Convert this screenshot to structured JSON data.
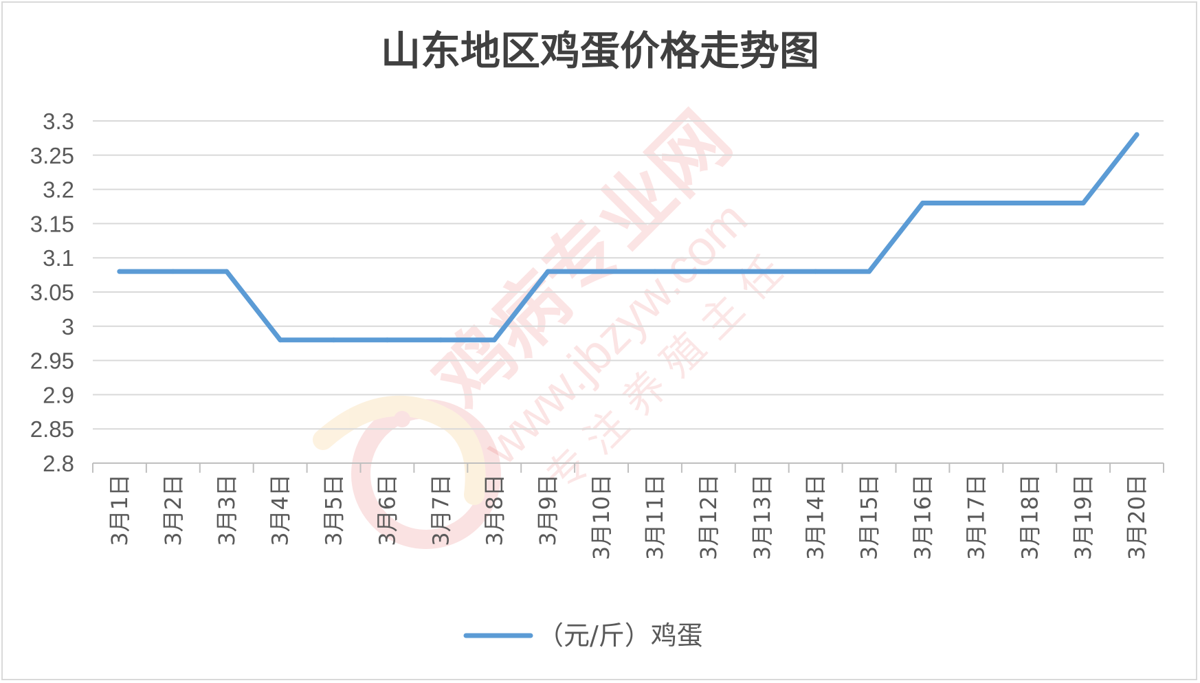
{
  "chart_data": {
    "type": "line",
    "title": "山东地区鸡蛋价格走势图",
    "categories": [
      "3月1日",
      "3月2日",
      "3月3日",
      "3月4日",
      "3月5日",
      "3月6日",
      "3月7日",
      "3月8日",
      "3月9日",
      "3月10日",
      "3月11日",
      "3月12日",
      "3月13日",
      "3月14日",
      "3月15日",
      "3月16日",
      "3月17日",
      "3月18日",
      "3月19日",
      "3月20日"
    ],
    "series": [
      {
        "name": "（元/斤）鸡蛋",
        "color": "#5b9bd5",
        "values": [
          3.08,
          3.08,
          3.08,
          2.98,
          2.98,
          2.98,
          2.98,
          2.98,
          3.08,
          3.08,
          3.08,
          3.08,
          3.08,
          3.08,
          3.08,
          3.18,
          3.18,
          3.18,
          3.18,
          3.28
        ]
      }
    ],
    "ylim": [
      2.8,
      3.3
    ],
    "yticks": [
      "2.8",
      "2.85",
      "2.9",
      "2.95",
      "3",
      "3.05",
      "3.1",
      "3.15",
      "3.2",
      "3.25",
      "3.3"
    ],
    "xlabel": "",
    "ylabel": "",
    "grid": true,
    "legend_position": "bottom"
  },
  "watermark": {
    "site_name": "鸡病专业网",
    "url": "www.jbzyw.com",
    "slogan": "专 注 养 殖 主 任"
  }
}
